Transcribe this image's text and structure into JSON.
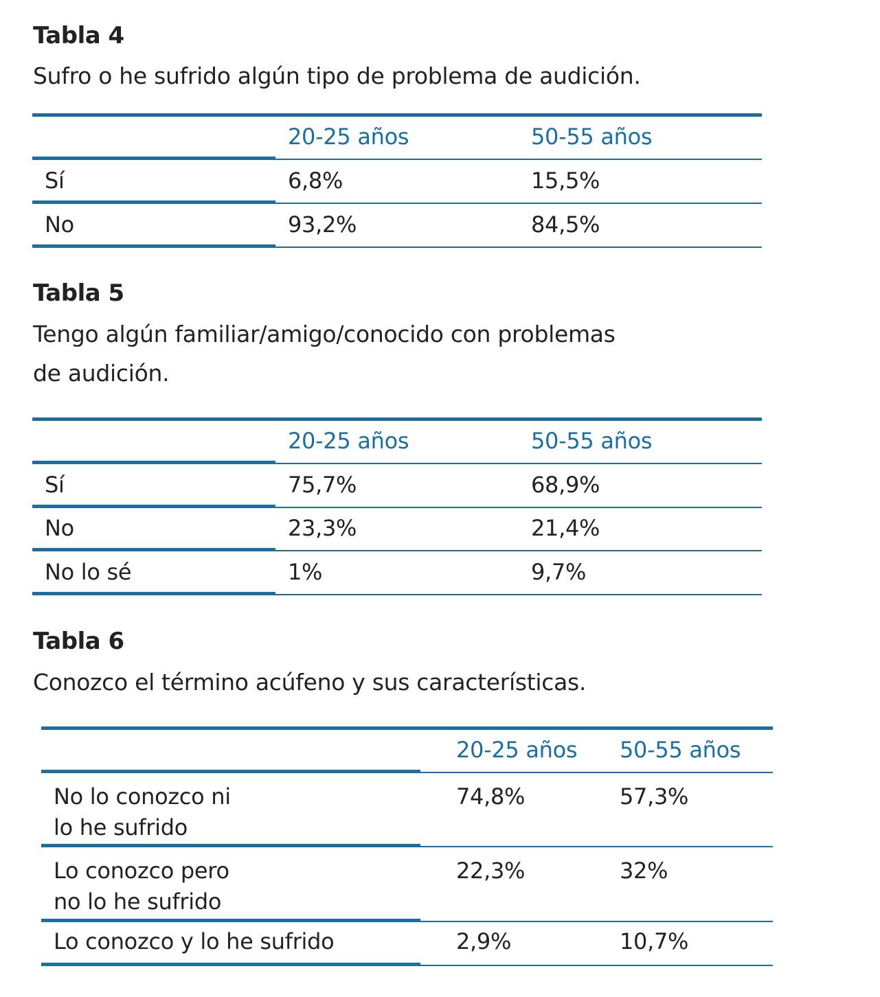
{
  "accent": "#1a6fa0",
  "tables": [
    {
      "title": "Tabla 4",
      "caption": "Sufro o he sufrido algún tipo de problema de audición.",
      "columns": [
        "",
        "20-25 años",
        "50-55 años"
      ],
      "rows": [
        {
          "label": "Sí",
          "values": [
            "6,8%",
            "15,5%"
          ]
        },
        {
          "label": "No",
          "values": [
            "93,2%",
            "84,5%"
          ]
        }
      ]
    },
    {
      "title": "Tabla 5",
      "caption_lines": [
        "Tengo algún familiar/amigo/conocido con problemas",
        "de audición."
      ],
      "columns": [
        "",
        "20-25 años",
        "50-55 años"
      ],
      "rows": [
        {
          "label": "Sí",
          "values": [
            "75,7%",
            "68,9%"
          ]
        },
        {
          "label": "No",
          "values": [
            "23,3%",
            "21,4%"
          ]
        },
        {
          "label": "No lo sé",
          "values": [
            "1%",
            "9,7%"
          ]
        }
      ]
    },
    {
      "title": "Tabla 6",
      "caption": "Conozco el término acúfeno y sus características.",
      "columns": [
        "",
        "20-25 años",
        "50-55 años"
      ],
      "rows": [
        {
          "label_lines": [
            "No lo conozco ni",
            "lo he sufrido"
          ],
          "values": [
            "74,8%",
            "57,3%"
          ]
        },
        {
          "label_lines": [
            "Lo conozco pero",
            "no lo he sufrido"
          ],
          "values": [
            "22,3%",
            "32%"
          ]
        },
        {
          "label": "Lo conozco y lo he sufrido",
          "values": [
            "2,9%",
            "10,7%"
          ]
        }
      ]
    }
  ]
}
